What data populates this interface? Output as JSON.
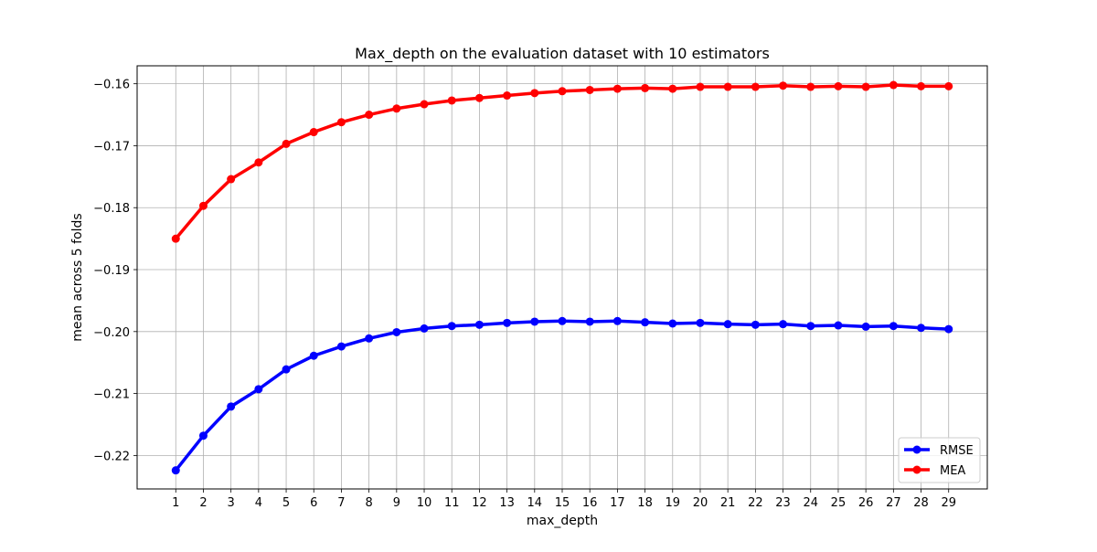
{
  "chart_data": {
    "type": "line",
    "title": "Max_depth on the evaluation dataset with 10 estimators",
    "xlabel": "max_depth",
    "ylabel": "mean across 5 folds",
    "x": [
      1,
      2,
      3,
      4,
      5,
      6,
      7,
      8,
      9,
      10,
      11,
      12,
      13,
      14,
      15,
      16,
      17,
      18,
      19,
      20,
      21,
      22,
      23,
      24,
      25,
      26,
      27,
      28,
      29
    ],
    "xlim": [
      -0.4,
      30.4
    ],
    "ylim": [
      -0.2254,
      -0.1571
    ],
    "yticks": [
      -0.22,
      -0.21,
      -0.2,
      -0.19,
      -0.18,
      -0.17,
      -0.16
    ],
    "ytick_labels": [
      "−0.22",
      "−0.21",
      "−0.20",
      "−0.19",
      "−0.18",
      "−0.17",
      "−0.16"
    ],
    "grid": true,
    "legend_position": "bottom-right",
    "series": [
      {
        "name": "RMSE",
        "color": "#0000ff",
        "values": [
          -0.2224,
          -0.2168,
          -0.2121,
          -0.2093,
          -0.2061,
          -0.2039,
          -0.2024,
          -0.2011,
          -0.2001,
          -0.1995,
          -0.1991,
          -0.1989,
          -0.1986,
          -0.1984,
          -0.1983,
          -0.1984,
          -0.1983,
          -0.1985,
          -0.1987,
          -0.1986,
          -0.1988,
          -0.1989,
          -0.1988,
          -0.1991,
          -0.199,
          -0.1992,
          -0.1991,
          -0.1994,
          -0.1996
        ]
      },
      {
        "name": "MEA",
        "color": "#ff0000",
        "values": [
          -0.185,
          -0.1797,
          -0.1754,
          -0.1727,
          -0.1697,
          -0.1678,
          -0.1662,
          -0.165,
          -0.164,
          -0.1633,
          -0.1627,
          -0.1623,
          -0.1619,
          -0.1615,
          -0.1612,
          -0.161,
          -0.1608,
          -0.1607,
          -0.1608,
          -0.1605,
          -0.1605,
          -0.1605,
          -0.1603,
          -0.1605,
          -0.1604,
          -0.1605,
          -0.1602,
          -0.1604,
          -0.1604
        ]
      }
    ]
  }
}
